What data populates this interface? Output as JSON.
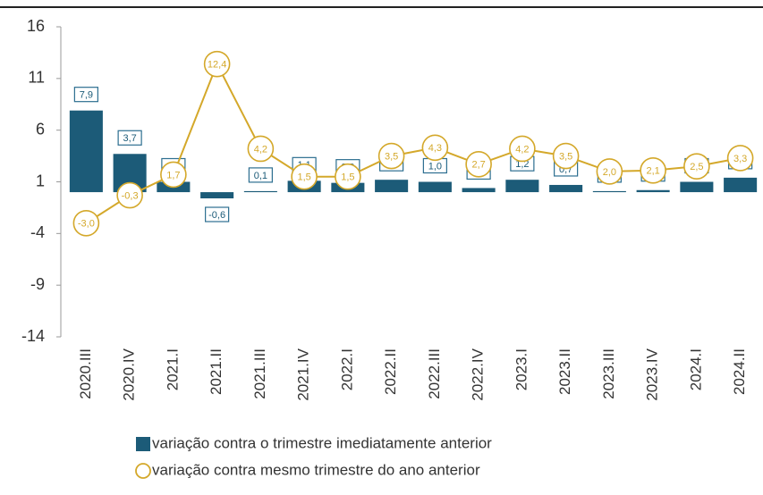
{
  "chart_data": {
    "type": "bar_line",
    "categories": [
      "2020.III",
      "2020.IV",
      "2021.I",
      "2021.II",
      "2021.III",
      "2021.IV",
      "2022.I",
      "2022.II",
      "2022.III",
      "2022.IV",
      "2023.I",
      "2023.II",
      "2023.III",
      "2023.IV",
      "2024.I",
      "2024.II"
    ],
    "series": [
      {
        "name": "variação contra o trimestre imediatamente anterior",
        "type": "bar",
        "color": "#1c5b78",
        "values": [
          7.9,
          3.7,
          1.0,
          -0.6,
          0.1,
          1.1,
          0.9,
          1.2,
          1.0,
          0.4,
          1.2,
          0.7,
          0.1,
          0.2,
          1.0,
          1.4
        ],
        "value_labels": [
          "7,9",
          "3,7",
          "1,0",
          "-0,6",
          "0,1",
          "1,1",
          "0,9",
          "1,2",
          "1,0",
          "0,4",
          "1,2",
          "0,7",
          "0,1",
          "0,2",
          "1,0",
          "1,4"
        ]
      },
      {
        "name": "variação contra mesmo trimestre do ano anterior",
        "type": "line",
        "color": "#d4a82a",
        "values": [
          -3.0,
          -0.3,
          1.7,
          12.4,
          4.2,
          1.5,
          1.5,
          3.5,
          4.3,
          2.7,
          4.2,
          3.5,
          2.0,
          2.1,
          2.5,
          3.3
        ],
        "value_labels": [
          "-3,0",
          "-0,3",
          "1,7",
          "12,4",
          "4,2",
          "1,5",
          "1,5",
          "3,5",
          "4,3",
          "2,7",
          "4,2",
          "3,5",
          "2,0",
          "2,1",
          "2,5",
          "3,3"
        ]
      }
    ],
    "ylim": [
      -14,
      16
    ],
    "yticks": [
      16,
      11,
      6,
      1,
      -4,
      -9,
      -14
    ],
    "legend": "bottom"
  }
}
